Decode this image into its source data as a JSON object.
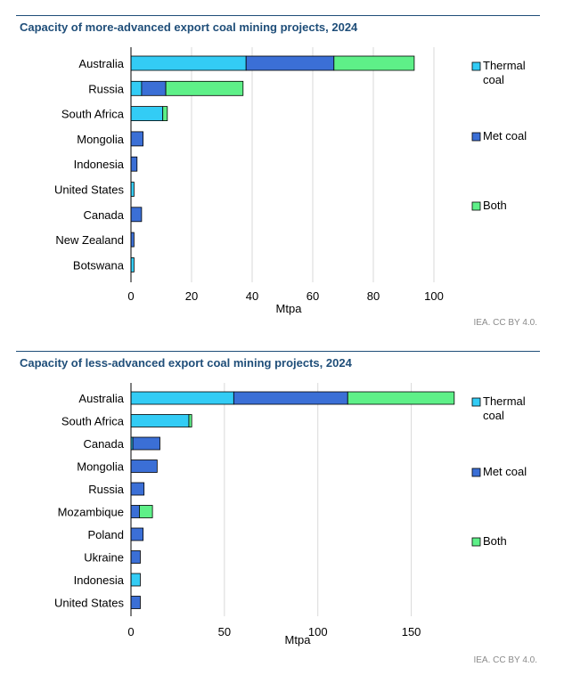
{
  "colors": {
    "thermal": "#33ccf5",
    "met": "#3b6fd6",
    "both": "#5ef088",
    "grid": "#d9d9d9",
    "axis": "#000000",
    "title": "#1f4e79"
  },
  "chart_data": [
    {
      "type": "bar",
      "orientation": "horizontal",
      "stacked": true,
      "title": "Capacity of more-advanced export coal mining projects, 2024",
      "xlabel": "Mtpa",
      "xlim": [
        0,
        105
      ],
      "xticks": [
        0,
        20,
        40,
        60,
        80,
        100
      ],
      "xtick_labels": [
        "0",
        "20",
        "40",
        "60",
        "80",
        "100"
      ],
      "categories": [
        "Australia",
        "Russia",
        "South Africa",
        "Mongolia",
        "Indonesia",
        "United States",
        "Canada",
        "New Zealand",
        "Botswana"
      ],
      "series": [
        {
          "name": "Thermal coal",
          "key": "thermal",
          "values": [
            38,
            3.5,
            10.5,
            0,
            0,
            1,
            0,
            0,
            1
          ]
        },
        {
          "name": "Met coal",
          "key": "met",
          "values": [
            29,
            8,
            0,
            4,
            2,
            0,
            3.5,
            1,
            0
          ]
        },
        {
          "name": "Both",
          "key": "both",
          "values": [
            26.5,
            25.5,
            1.5,
            0,
            0,
            0,
            0,
            0,
            0
          ]
        }
      ],
      "legend": [
        {
          "label": "Thermal coal",
          "key": "thermal"
        },
        {
          "label": "Met coal",
          "key": "met"
        },
        {
          "label": "Both",
          "key": "both"
        }
      ],
      "legend_position": "right",
      "grid": "vertical",
      "credit": "IEA. CC BY 4.0."
    },
    {
      "type": "bar",
      "orientation": "horizontal",
      "stacked": true,
      "title": "Capacity of less-advanced export coal mining projects, 2024",
      "xlabel": "Mtpa",
      "xlim": [
        0,
        175
      ],
      "xticks": [
        0,
        50,
        100,
        150
      ],
      "xtick_labels": [
        "0",
        "50",
        "100",
        "150"
      ],
      "categories": [
        "Australia",
        "South Africa",
        "Canada",
        "Mongolia",
        "Russia",
        "Mozambique",
        "Poland",
        "Ukraine",
        "Indonesia",
        "United States"
      ],
      "series": [
        {
          "name": "Thermal coal",
          "key": "thermal",
          "values": [
            55,
            31,
            1,
            0,
            0,
            0,
            0,
            0,
            5,
            0
          ]
        },
        {
          "name": "Met coal",
          "key": "met",
          "values": [
            61,
            0,
            14.5,
            14,
            7,
            4.5,
            6.5,
            5,
            0,
            5
          ]
        },
        {
          "name": "Both",
          "key": "both",
          "values": [
            57,
            1.5,
            0,
            0,
            0,
            7,
            0,
            0,
            0,
            0
          ]
        }
      ],
      "legend": [
        {
          "label": "Thermal coal",
          "key": "thermal"
        },
        {
          "label": "Met coal",
          "key": "met"
        },
        {
          "label": "Both",
          "key": "both"
        }
      ],
      "legend_position": "right",
      "grid": "vertical",
      "credit": "IEA. CC BY 4.0."
    }
  ]
}
